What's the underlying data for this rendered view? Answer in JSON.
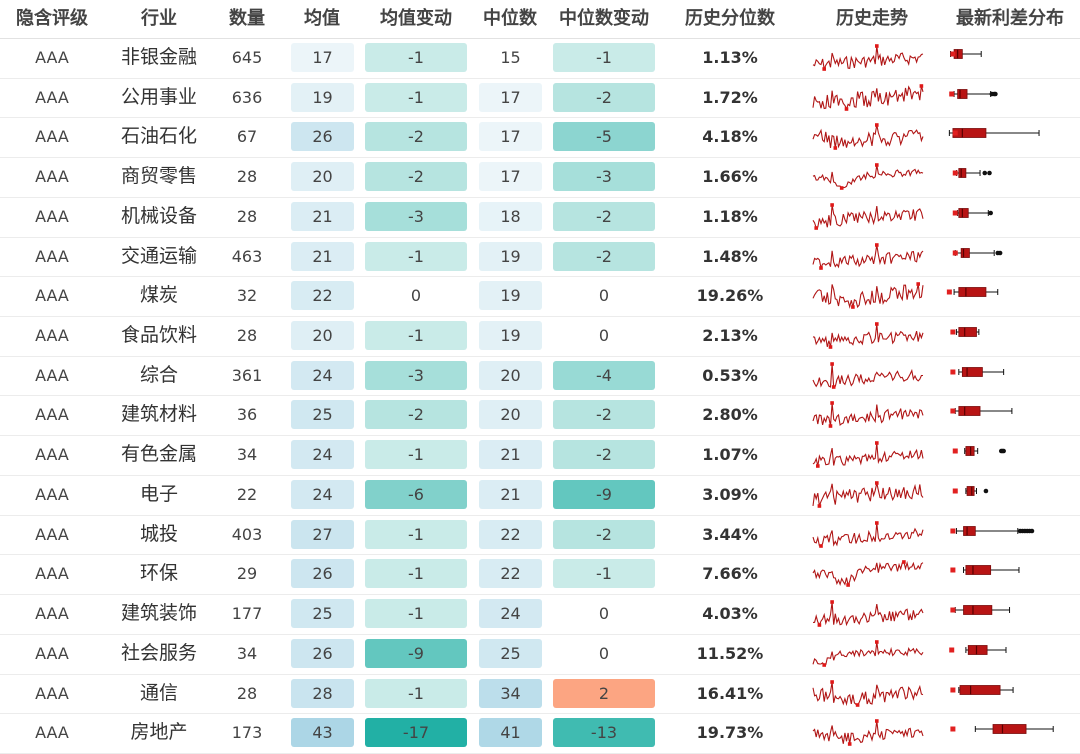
{
  "chart_data": {
    "type": "table",
    "headers": [
      "隐含评级",
      "行业",
      "数量",
      "均值",
      "均值变动",
      "中位数",
      "中位数变动",
      "历史分位数",
      "历史走势",
      "最新利差分布"
    ],
    "rows": [
      {
        "rating": "AAA",
        "industry": "非银金融",
        "count": "645",
        "mean": 17,
        "mean_chg": -1,
        "median": 15,
        "median_chg": -1,
        "pct": "1.13%",
        "box": [
          3,
          6,
          9,
          13,
          29,
          [],
          5
        ],
        "trend_style": 0
      },
      {
        "rating": "AAA",
        "industry": "公用事业",
        "count": "636",
        "mean": 19,
        "mean_chg": -1,
        "median": 17,
        "median_chg": -2,
        "pct": "1.72%",
        "box": [
          6,
          9,
          11,
          17,
          37,
          [
            38,
            40,
            41
          ],
          4
        ],
        "trend_style": 0
      },
      {
        "rating": "AAA",
        "industry": "石油石化",
        "count": "67",
        "mean": 26,
        "mean_chg": -2,
        "median": 17,
        "median_chg": -5,
        "pct": "4.18%",
        "box": [
          2,
          5,
          13,
          33,
          78,
          [],
          7
        ],
        "trend_style": 1
      },
      {
        "rating": "AAA",
        "industry": "商贸零售",
        "count": "28",
        "mean": 20,
        "mean_chg": -2,
        "median": 17,
        "median_chg": -3,
        "pct": "1.66%",
        "box": [
          8,
          10,
          12,
          16,
          28,
          [
            32,
            36
          ],
          7
        ],
        "trend_style": 2
      },
      {
        "rating": "AAA",
        "industry": "机械设备",
        "count": "28",
        "mean": 21,
        "mean_chg": -3,
        "median": 18,
        "median_chg": -2,
        "pct": "1.18%",
        "box": [
          9,
          10,
          13,
          18,
          35,
          [
            37
          ],
          7
        ],
        "trend_style": 0
      },
      {
        "rating": "AAA",
        "industry": "交通运输",
        "count": "463",
        "mean": 21,
        "mean_chg": -1,
        "median": 19,
        "median_chg": -2,
        "pct": "1.48%",
        "box": [
          7,
          12,
          14,
          19,
          40,
          [
            43,
            45
          ],
          7
        ],
        "trend_style": 0
      },
      {
        "rating": "AAA",
        "industry": "煤炭",
        "count": "32",
        "mean": 22,
        "mean_chg": 0,
        "median": 19,
        "median_chg": 0,
        "pct": "19.26%",
        "box": [
          6,
          10,
          16,
          33,
          43,
          [],
          2
        ],
        "trend_style": 3
      },
      {
        "rating": "AAA",
        "industry": "食品饮料",
        "count": "28",
        "mean": 20,
        "mean_chg": -1,
        "median": 19,
        "median_chg": 0,
        "pct": "2.13%",
        "box": [
          8,
          10,
          15,
          25,
          27,
          [],
          5
        ],
        "trend_style": 0
      },
      {
        "rating": "AAA",
        "industry": "综合",
        "count": "361",
        "mean": 24,
        "mean_chg": -3,
        "median": 20,
        "median_chg": -4,
        "pct": "0.53%",
        "box": [
          10,
          13,
          17,
          30,
          48,
          [],
          5
        ],
        "trend_style": 0
      },
      {
        "rating": "AAA",
        "industry": "建筑材料",
        "count": "36",
        "mean": 25,
        "mean_chg": -2,
        "median": 20,
        "median_chg": -2,
        "pct": "2.80%",
        "box": [
          7,
          10,
          15,
          28,
          55,
          [],
          5
        ],
        "trend_style": 0
      },
      {
        "rating": "AAA",
        "industry": "有色金属",
        "count": "34",
        "mean": 24,
        "mean_chg": -1,
        "median": 21,
        "median_chg": -2,
        "pct": "1.07%",
        "box": [
          15,
          16,
          20,
          23,
          26,
          [
            46,
            47,
            48
          ],
          7
        ],
        "trend_style": 0
      },
      {
        "rating": "AAA",
        "industry": "电子",
        "count": "22",
        "mean": 24,
        "mean_chg": -6,
        "median": 21,
        "median_chg": -9,
        "pct": "3.09%",
        "box": [
          16,
          17,
          21,
          23,
          25,
          [
            33
          ],
          7
        ],
        "trend_style": 0
      },
      {
        "rating": "AAA",
        "industry": "城投",
        "count": "403",
        "mean": 27,
        "mean_chg": -1,
        "median": 22,
        "median_chg": -2,
        "pct": "3.44%",
        "box": [
          8,
          14,
          17,
          24,
          60,
          [
            62,
            64,
            66,
            68,
            70,
            72
          ],
          5
        ],
        "trend_style": 0
      },
      {
        "rating": "AAA",
        "industry": "环保",
        "count": "29",
        "mean": 26,
        "mean_chg": -1,
        "median": 22,
        "median_chg": -1,
        "pct": "7.66%",
        "box": [
          14,
          16,
          22,
          37,
          61,
          [],
          5
        ],
        "trend_style": 2
      },
      {
        "rating": "AAA",
        "industry": "建筑装饰",
        "count": "177",
        "mean": 25,
        "mean_chg": -1,
        "median": 24,
        "median_chg": 0,
        "pct": "4.03%",
        "box": [
          7,
          14,
          22,
          38,
          53,
          [],
          5
        ],
        "trend_style": 0
      },
      {
        "rating": "AAA",
        "industry": "社会服务",
        "count": "34",
        "mean": 26,
        "mean_chg": -9,
        "median": 25,
        "median_chg": 0,
        "pct": "11.52%",
        "box": [
          16,
          18,
          25,
          34,
          50,
          [],
          4
        ],
        "trend_style": 4
      },
      {
        "rating": "AAA",
        "industry": "通信",
        "count": "28",
        "mean": 28,
        "mean_chg": -1,
        "median": 34,
        "median_chg": 2,
        "pct": "16.41%",
        "box": [
          10,
          11,
          20,
          45,
          56,
          [],
          5
        ],
        "trend_style": 3
      },
      {
        "rating": "AAA",
        "industry": "房地产",
        "count": "173",
        "mean": 43,
        "mean_chg": -17,
        "median": 41,
        "median_chg": -13,
        "pct": "19.73%",
        "box": [
          24,
          39,
          47,
          67,
          90,
          [],
          5
        ],
        "trend_style": 3
      }
    ]
  }
}
